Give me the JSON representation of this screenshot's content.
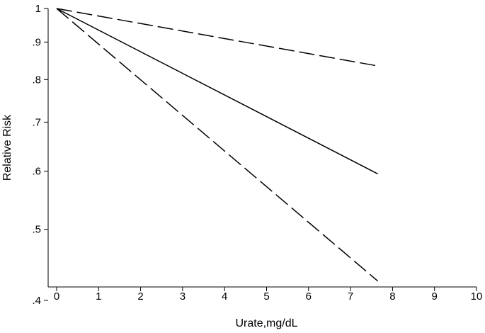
{
  "chart_data": {
    "type": "line",
    "xlabel": "Urate,mg/dL",
    "ylabel": "Relative Risk",
    "xlim": [
      0,
      10
    ],
    "ylim": [
      0.4,
      1
    ],
    "y_scale": "log",
    "grid": false,
    "legend": "none",
    "x_ticks": [
      0,
      1,
      2,
      3,
      4,
      5,
      6,
      7,
      8,
      9,
      10
    ],
    "x_tick_labels": [
      "0",
      "1",
      "2",
      "3",
      "4",
      "5",
      "6",
      "7",
      "8",
      "9",
      "10"
    ],
    "y_ticks": [
      0.4,
      0.5,
      0.6,
      0.7,
      0.8,
      0.9,
      1
    ],
    "y_tick_labels": [
      ".4",
      ".5",
      ".6",
      ".7",
      ".8",
      ".9",
      "1"
    ],
    "series": [
      {
        "style": "solid",
        "color": "#000000",
        "x": [
          0,
          7.65
        ],
        "y": [
          1.0,
          0.595
        ]
      },
      {
        "style": "dashed",
        "color": "#000000",
        "x": [
          0,
          7.65
        ],
        "y": [
          1.0,
          0.835
        ]
      },
      {
        "style": "dashed",
        "color": "#000000",
        "x": [
          0,
          7.65
        ],
        "y": [
          1.0,
          0.425
        ]
      }
    ]
  }
}
